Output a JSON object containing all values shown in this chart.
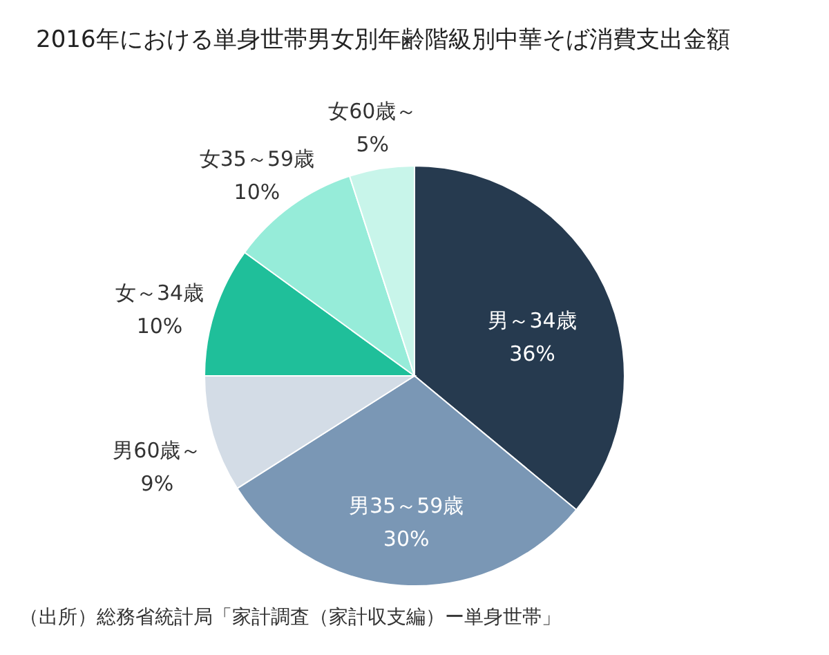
{
  "chart_data": {
    "type": "pie",
    "title": "2016年における単身世帯男女別年齢階級別中華そば消費支出金額",
    "categories": [
      "男～34歳",
      "男35～59歳",
      "男60歳～",
      "女～34歳",
      "女35～59歳",
      "女60歳～"
    ],
    "values": [
      36,
      30,
      9,
      10,
      10,
      5
    ],
    "colors": [
      "#263a4f",
      "#7a97b5",
      "#d3dce6",
      "#1fbf9a",
      "#96ecd9",
      "#c8f5ea"
    ],
    "value_labels": [
      "36%",
      "30%",
      "9%",
      "10%",
      "10%",
      "5%"
    ],
    "annotations": [
      "（出所）総務省統計局「家計調査（家計収支編）ー単身世帯」"
    ]
  }
}
